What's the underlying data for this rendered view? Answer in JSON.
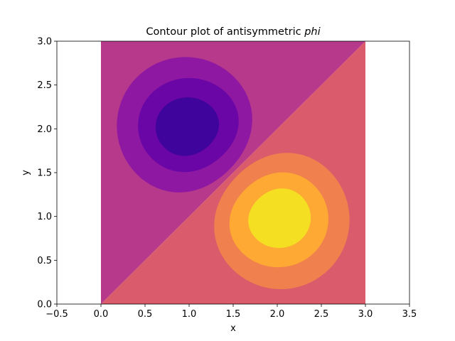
{
  "chart_data": {
    "type": "contour",
    "title_prefix": "Contour plot of antisymmetric ",
    "title_math": "phi",
    "xlabel": "x",
    "ylabel": "y",
    "xlim": [
      -0.5,
      3.5
    ],
    "ylim": [
      0.0,
      3.0
    ],
    "domain": {
      "x": [
        0.0,
        3.0
      ],
      "y": [
        0.0,
        3.0
      ]
    },
    "grid": false,
    "xticks": [
      "-0.5",
      "0.0",
      "0.5",
      "1.0",
      "1.5",
      "2.0",
      "2.5",
      "3.0",
      "3.5"
    ],
    "yticks": [
      "0.0",
      "0.5",
      "1.0",
      "1.5",
      "2.0",
      "2.5",
      "3.0"
    ],
    "colormap": "plasma",
    "regions": [
      {
        "name": "upper-left background (above diagonal y = x)",
        "color": "#b7398c"
      },
      {
        "name": "lower-right background (below diagonal y = x)",
        "color": "#da5b6b"
      }
    ],
    "negative_lobe": {
      "center": [
        1.0,
        2.0
      ],
      "levels": [
        {
          "color": "#8e18a2",
          "x": [
            0.18,
            1.74
          ],
          "y": [
            1.25,
            2.82
          ]
        },
        {
          "color": "#6a05a6",
          "x": [
            0.42,
            1.58
          ],
          "y": [
            1.49,
            2.58
          ]
        },
        {
          "color": "#3e049c",
          "x": [
            0.62,
            1.35
          ],
          "y": [
            1.68,
            2.36
          ]
        }
      ]
    },
    "positive_lobe": {
      "center": [
        2.0,
        1.0
      ],
      "levels": [
        {
          "color": "#f0804e",
          "x": [
            1.26,
            2.82
          ],
          "y": [
            0.17,
            1.75
          ]
        },
        {
          "color": "#fda934",
          "x": [
            1.44,
            2.58
          ],
          "y": [
            0.42,
            1.52
          ]
        },
        {
          "color": "#f4df23",
          "x": [
            1.66,
            2.38
          ],
          "y": [
            0.64,
            1.33
          ]
        }
      ]
    }
  }
}
